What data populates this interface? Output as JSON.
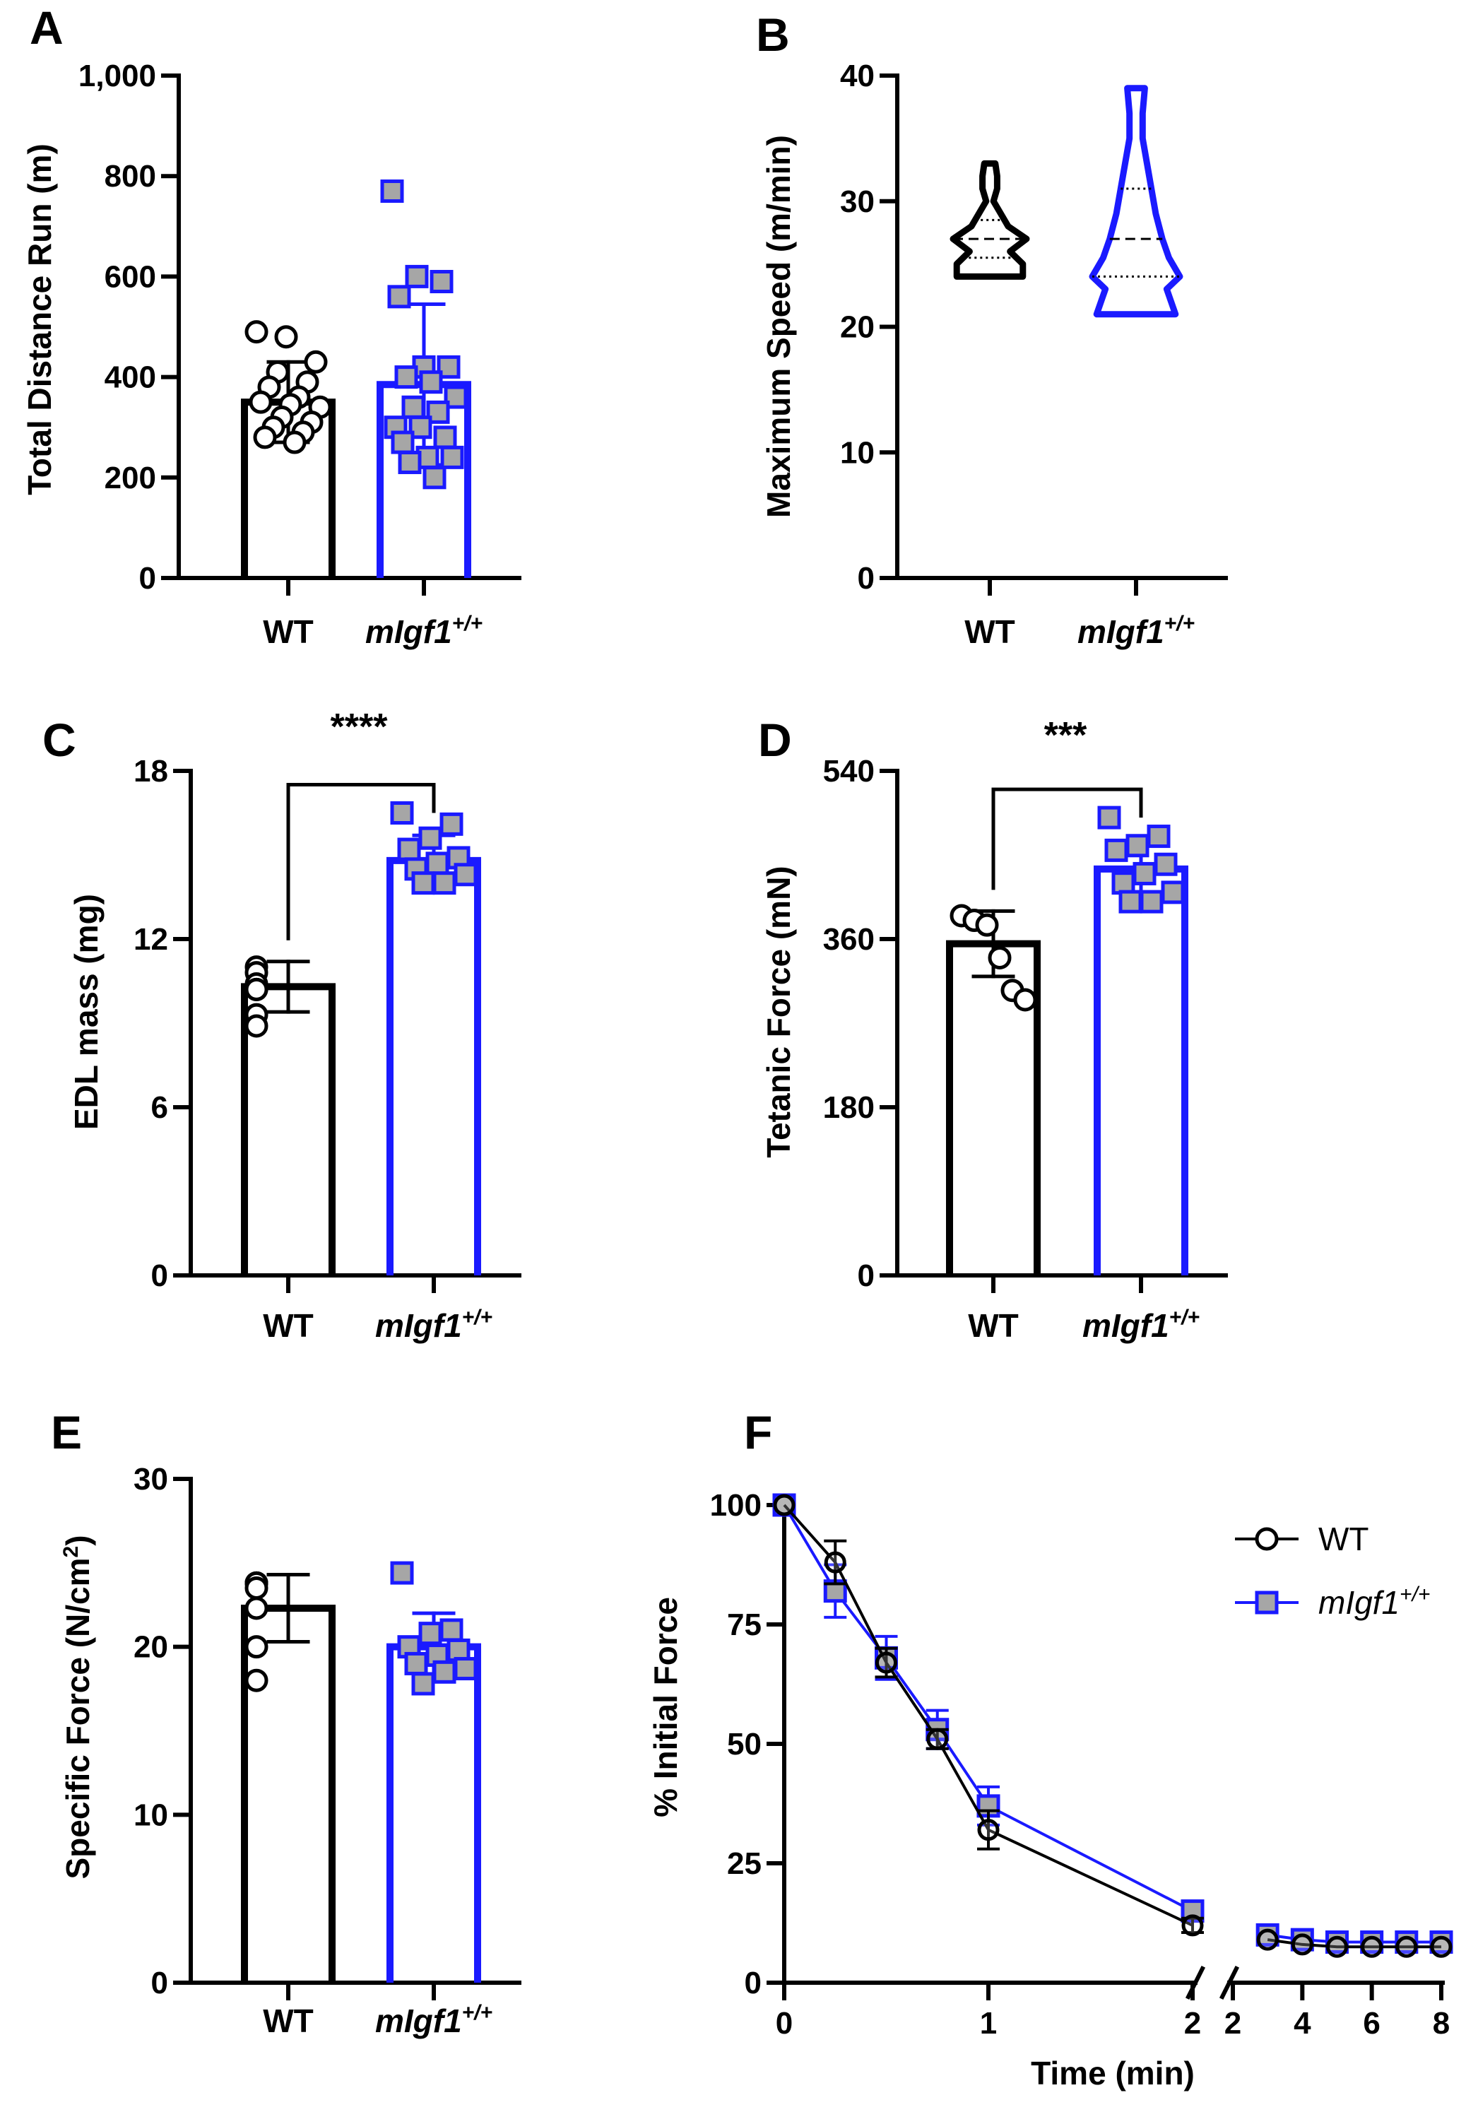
{
  "colors": {
    "wt": "#000000",
    "migf1": "#1a1aff",
    "marker_fill": "#a6a6a6",
    "background": "#ffffff"
  },
  "groups": [
    "WT",
    "mIgf1",
    "+/+"
  ],
  "chart_data": [
    {
      "panel": "A",
      "type": "bar",
      "title": "",
      "ylabel": "Total Distance Run (m)",
      "ylim": [
        0,
        1000
      ],
      "yticks": [
        "0",
        "200",
        "400",
        "600",
        "800",
        "1,000"
      ],
      "ytick_values": [
        0,
        200,
        400,
        600,
        800,
        1000
      ],
      "categories": [
        "WT",
        "mIgf1+/+"
      ],
      "means": [
        350,
        385
      ],
      "sd": [
        80,
        160
      ],
      "points": [
        [
          490,
          480,
          430,
          410,
          390,
          380,
          360,
          350,
          345,
          340,
          320,
          310,
          300,
          290,
          280,
          270
        ],
        [
          770,
          600,
          590,
          560,
          420,
          420,
          400,
          390,
          360,
          340,
          330,
          300,
          300,
          280,
          270,
          240,
          240,
          230,
          200
        ]
      ],
      "significance": ""
    },
    {
      "panel": "B",
      "type": "violin",
      "title": "",
      "ylabel": "Maximum Speed (m/min)",
      "ylim": [
        0,
        40
      ],
      "yticks": [
        "0",
        "10",
        "20",
        "30",
        "40"
      ],
      "ytick_values": [
        0,
        10,
        20,
        30,
        40
      ],
      "categories": [
        "WT",
        "mIgf1+/+"
      ],
      "ranges": [
        [
          24,
          33
        ],
        [
          21,
          39
        ]
      ],
      "medians": [
        27,
        27
      ],
      "quartiles": [
        [
          25.5,
          28.5
        ],
        [
          24,
          31
        ]
      ],
      "significance": ""
    },
    {
      "panel": "C",
      "type": "bar",
      "title": "",
      "ylabel": "EDL mass (mg)",
      "ylim": [
        0,
        18
      ],
      "yticks": [
        "0",
        "6",
        "12",
        "18"
      ],
      "ytick_values": [
        0,
        6,
        12,
        18
      ],
      "categories": [
        "WT",
        "mIgf1+/+"
      ],
      "means": [
        10.3,
        14.8
      ],
      "sd": [
        0.9,
        0.9
      ],
      "points": [
        [
          11.0,
          10.8,
          10.4,
          10.2,
          10.2,
          9.3,
          8.9
        ],
        [
          16.5,
          16.1,
          15.6,
          15.2,
          14.9,
          14.7,
          14.5,
          14.3,
          14.0,
          14.0
        ]
      ],
      "significance": "****"
    },
    {
      "panel": "D",
      "type": "bar",
      "title": "",
      "ylabel": "Tetanic Force (mN)",
      "ylim": [
        0,
        540
      ],
      "yticks": [
        "0",
        "180",
        "360",
        "540"
      ],
      "ytick_values": [
        0,
        180,
        360,
        540
      ],
      "categories": [
        "WT",
        "mIgf1+/+"
      ],
      "means": [
        355,
        435
      ],
      "sd": [
        35,
        30
      ],
      "points": [
        [
          385,
          380,
          375,
          340,
          305,
          295
        ],
        [
          490,
          470,
          460,
          455,
          440,
          430,
          420,
          410,
          400,
          400
        ]
      ],
      "significance": "***"
    },
    {
      "panel": "E",
      "type": "bar",
      "title": "",
      "ylabel": "Specific Force (N/cm²)",
      "ylim": [
        0,
        30
      ],
      "yticks": [
        "0",
        "10",
        "20",
        "30"
      ],
      "ytick_values": [
        0,
        10,
        20,
        30
      ],
      "categories": [
        "WT",
        "mIgf1+/+"
      ],
      "means": [
        22.3,
        20.0
      ],
      "sd": [
        2.0,
        2.0
      ],
      "points": [
        [
          23.8,
          23.8,
          23.8,
          23.5,
          22.3,
          20.0,
          18.0
        ],
        [
          24.4,
          21.0,
          20.8,
          20.0,
          19.8,
          19.5,
          19.0,
          18.7,
          18.5,
          17.8
        ]
      ],
      "significance": ""
    },
    {
      "panel": "F",
      "type": "line",
      "title": "",
      "xlabel": "Time (min)",
      "ylabel": "% Initial Force",
      "ylim": [
        0,
        100
      ],
      "yticks": [
        "0",
        "25",
        "50",
        "75",
        "100"
      ],
      "ytick_values": [
        0,
        25,
        50,
        75,
        100
      ],
      "xticks_left": [
        "0",
        "1",
        "2"
      ],
      "xticks_left_values": [
        0,
        1,
        2
      ],
      "xticks_right": [
        "2",
        "4",
        "6",
        "8"
      ],
      "xticks_right_values": [
        2,
        4,
        6,
        8
      ],
      "series": [
        {
          "name": "WT",
          "left": {
            "x": [
              0,
              0.25,
              0.5,
              0.75,
              1,
              2
            ],
            "y": [
              100,
              88,
              67,
              51,
              32,
              12
            ],
            "err": [
              0,
              4.5,
              3,
              2,
              4,
              1.5
            ]
          },
          "right": {
            "x": [
              3,
              4,
              5,
              6,
              7,
              8
            ],
            "y": [
              9,
              8,
              7.5,
              7.5,
              7.5,
              7.5
            ],
            "err": [
              0.5,
              0.5,
              0.5,
              0.5,
              0.5,
              0.5
            ]
          }
        },
        {
          "name": "mIgf1+/+",
          "left": {
            "x": [
              0,
              0.25,
              0.5,
              0.75,
              1,
              2
            ],
            "y": [
              100,
              82,
              68,
              53,
              37,
              15
            ],
            "err": [
              0,
              5.5,
              4.5,
              4,
              4,
              1.2
            ]
          },
          "right": {
            "x": [
              3,
              4,
              5,
              6,
              7,
              8
            ],
            "y": [
              10,
              9,
              8.5,
              8.5,
              8.5,
              8.5
            ],
            "err": [
              0.5,
              0.5,
              0.5,
              0.5,
              0.5,
              0.5
            ]
          }
        }
      ],
      "legend": {
        "position": "top-right",
        "entries": [
          "WT",
          "mIgf1",
          "+/+"
        ]
      }
    }
  ],
  "panel_letters": [
    "A",
    "B",
    "C",
    "D",
    "E",
    "F"
  ]
}
